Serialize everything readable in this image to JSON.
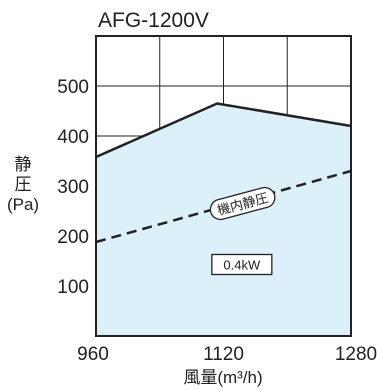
{
  "chart_data": {
    "type": "area",
    "title": "AFG-1200V",
    "ylabel_lines": [
      "静",
      "圧",
      "(Pa)"
    ],
    "xlabel": "風量(m³/h)",
    "xlim": [
      960,
      1280
    ],
    "ylim": [
      0,
      600
    ],
    "x_ticks": [
      960,
      1120,
      1280
    ],
    "x_tick_labels": [
      "960",
      "1120",
      "1280"
    ],
    "x_grid": [
      1040,
      1120,
      1200
    ],
    "y_ticks": [
      100,
      200,
      300,
      400,
      500
    ],
    "y_tick_labels": [
      "100",
      "200",
      "300",
      "400",
      "500"
    ],
    "grid": true,
    "series": [
      {
        "x": [
          960,
          1112,
          1280
        ],
        "y": [
          358,
          465,
          420
        ],
        "fill": "#dcf0f9",
        "stroke": "#222222",
        "style": "solid"
      },
      {
        "name": "機内静圧",
        "x": [
          960,
          1280
        ],
        "y": [
          188,
          330
        ],
        "stroke": "#222222",
        "style": "dashed"
      }
    ],
    "annotations": [
      {
        "text": "機内静圧",
        "x": 1144,
        "y": 265,
        "shape": "rounded",
        "rotate": -15
      },
      {
        "text": "0.4kW",
        "x": 1143,
        "y": 143,
        "shape": "box"
      }
    ],
    "colors": {
      "fill": "#dcf0f9",
      "line": "#222222",
      "grid": "#222222"
    }
  }
}
